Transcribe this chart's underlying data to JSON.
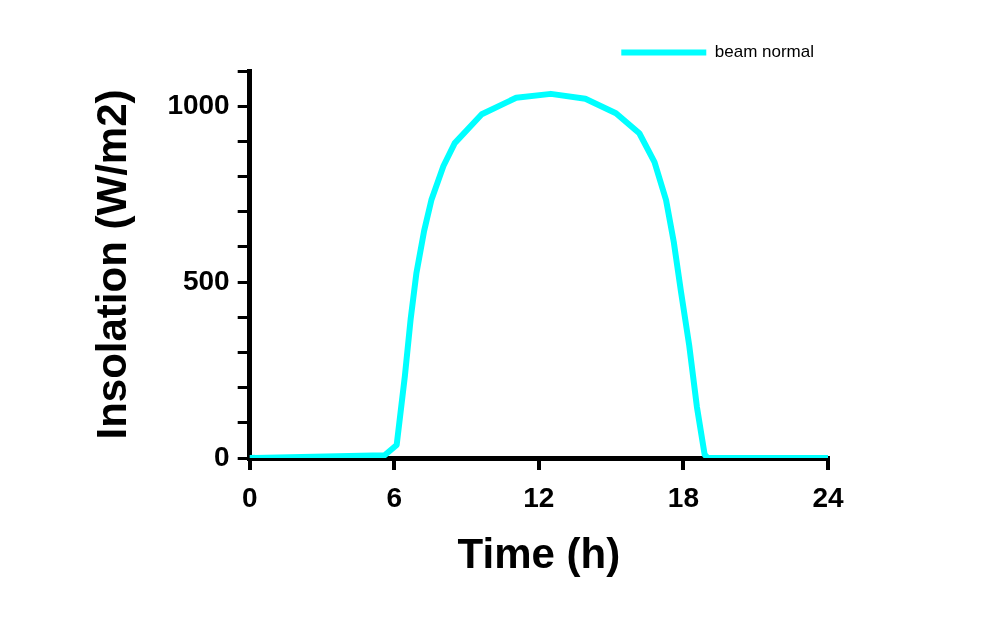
{
  "chart_data": {
    "type": "line",
    "xlabel": "Time (h)",
    "ylabel": "Insolation (W/m2)",
    "xlim": [
      0,
      24
    ],
    "xticks": [
      0,
      6,
      12,
      18,
      24
    ],
    "ylim": [
      0,
      1100
    ],
    "yticks": [
      0,
      {
        "value": 100,
        "label": null
      },
      {
        "value": 200,
        "label": null
      },
      {
        "value": 300,
        "label": null
      },
      {
        "value": 400,
        "label": null
      },
      500,
      {
        "value": 600,
        "label": null
      },
      {
        "value": 700,
        "label": null
      },
      {
        "value": 800,
        "label": null
      },
      {
        "value": 900,
        "label": null
      },
      1000,
      {
        "value": 1100,
        "label": null
      }
    ],
    "grid": false,
    "legend": "top right",
    "marker": "none",
    "line_style": "solid",
    "series": [
      {
        "name": "beam normal",
        "color": "#00ffff",
        "x": [
          0,
          5.6,
          6.1,
          6.44,
          6.68,
          6.92,
          7.24,
          7.54,
          8.04,
          8.51,
          9.63,
          11.06,
          12.5,
          13.93,
          15.2,
          16.17,
          16.8,
          17.28,
          17.6,
          17.9,
          18.24,
          18.56,
          18.88,
          19,
          24
        ],
        "values": [
          0,
          8,
          37,
          233,
          395,
          526,
          646,
          733,
          830,
          895,
          977,
          1024,
          1035,
          1021,
          980,
          923,
          841,
          733,
          614,
          472,
          320,
          145,
          10,
          0,
          0
        ]
      }
    ]
  }
}
